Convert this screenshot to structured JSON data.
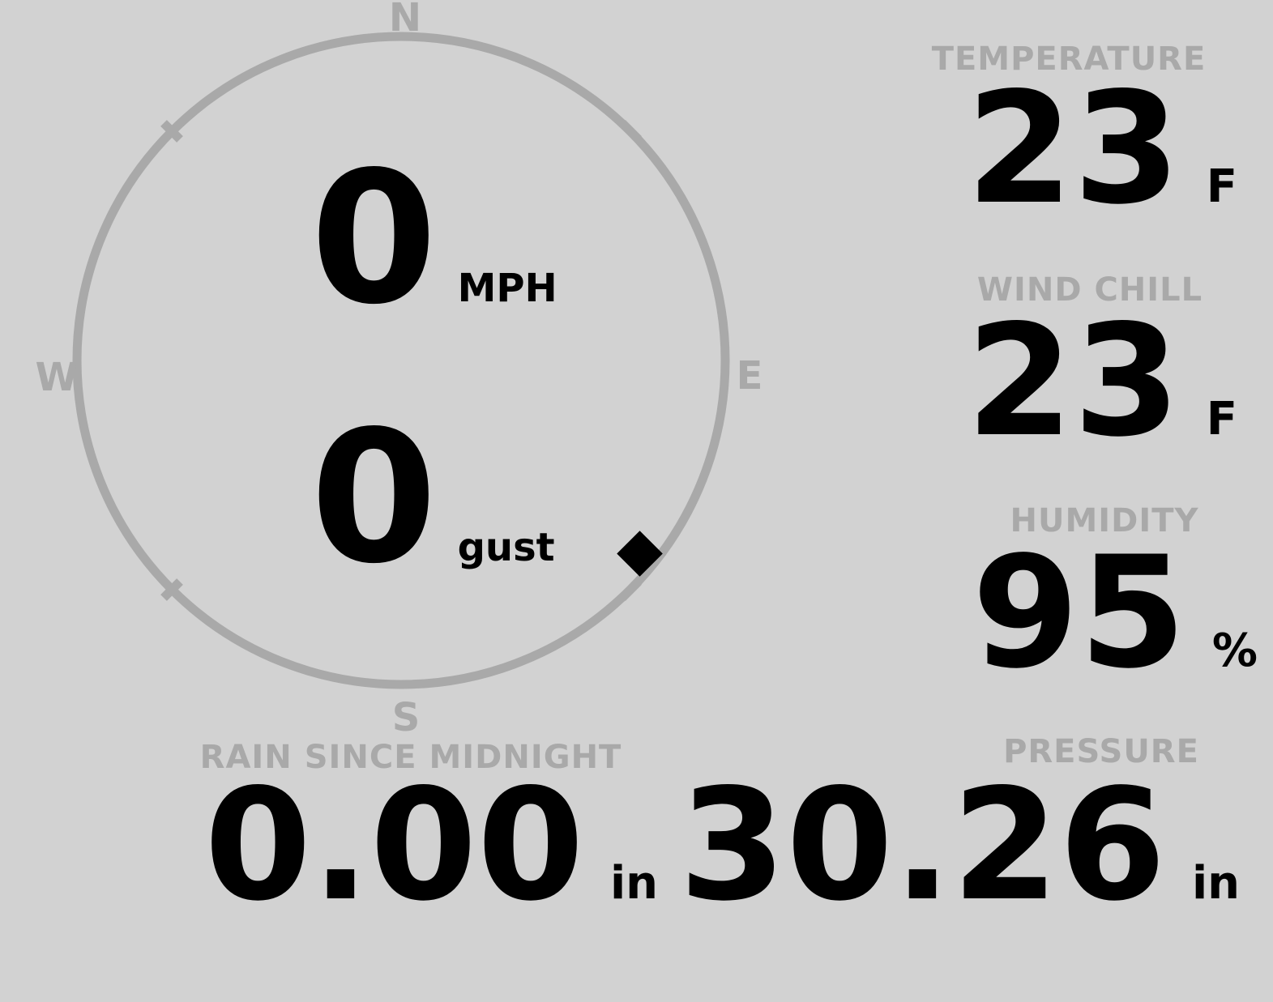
{
  "colors": {
    "background": "#d2d2d2",
    "muted_gray": "#a9a9a9",
    "value_black": "#000000"
  },
  "wind_gauge": {
    "compass": {
      "north": "N",
      "east": "E",
      "south": "S",
      "west": "W"
    },
    "speed": {
      "value": "0",
      "unit": "MPH"
    },
    "gust": {
      "value": "0",
      "unit": "gust"
    },
    "direction_marker": {
      "shape": "diamond",
      "bearing_deg": 129
    }
  },
  "readouts": {
    "temperature": {
      "label": "TEMPERATURE",
      "value": "23",
      "unit": "F"
    },
    "wind_chill": {
      "label": "WIND CHILL",
      "value": "23",
      "unit": "F"
    },
    "humidity": {
      "label": "HUMIDITY",
      "value": "95",
      "unit": "%"
    },
    "rain_since_midnight": {
      "label": "RAIN SINCE MIDNIGHT",
      "value": "0.00",
      "unit": "in"
    },
    "pressure": {
      "label": "PRESSURE",
      "value": "30.26",
      "unit": "in"
    }
  }
}
